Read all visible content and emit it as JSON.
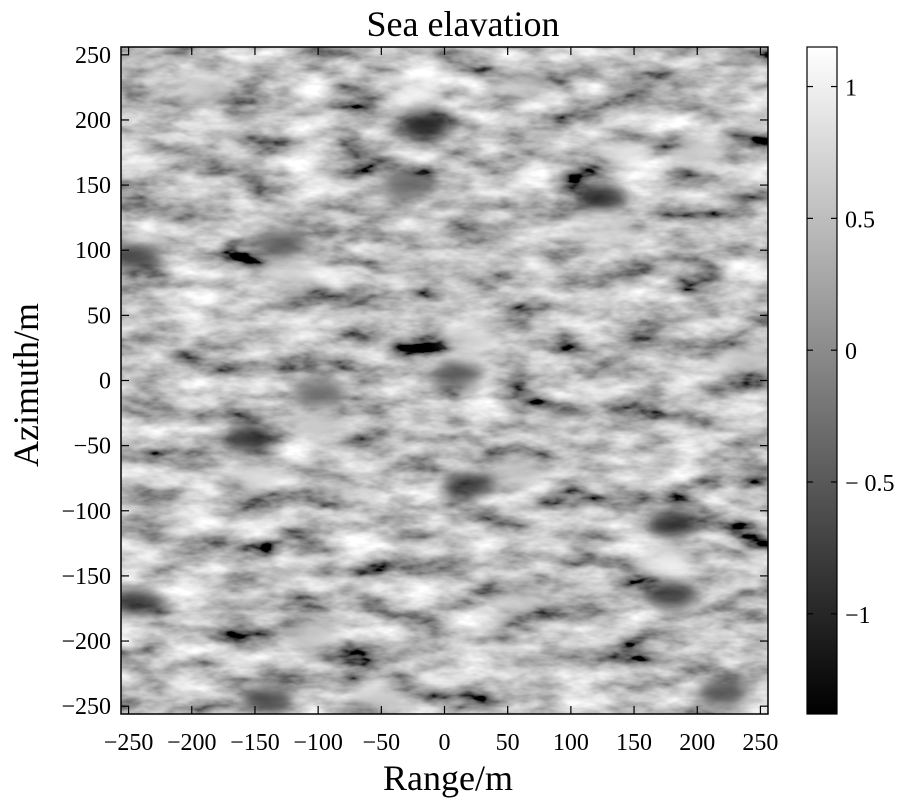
{
  "chart_data": {
    "type": "heatmap",
    "title": "Sea elavation",
    "xlabel": "Range/m",
    "ylabel": "Azimuth/m",
    "xlim": [
      -256,
      256
    ],
    "ylim": [
      -256,
      256
    ],
    "x_ticks": [
      -250,
      -200,
      -150,
      -100,
      -50,
      0,
      50,
      100,
      150,
      200,
      250
    ],
    "x_tick_labels": [
      "−250",
      "−200",
      "−150",
      "−100",
      "−50",
      "0",
      "50",
      "100",
      "150",
      "200",
      "250"
    ],
    "y_ticks": [
      250,
      200,
      150,
      100,
      50,
      0,
      -50,
      -100,
      -150,
      -200,
      -250
    ],
    "y_tick_labels": [
      "250",
      "200",
      "150",
      "100",
      "50",
      "0",
      "−50",
      "−100",
      "−150",
      "−200",
      "−250"
    ],
    "colorbar": {
      "range": [
        -1.38,
        1.15
      ],
      "ticks": [
        1,
        0.5,
        0,
        -0.5,
        -1
      ],
      "tick_labels": [
        "1",
        "0.5",
        "0",
        "− 0.5",
        "−1"
      ],
      "colormap": "gray",
      "low_color": "#000000",
      "high_color": "#ffffff"
    },
    "grid": false,
    "surface_features": [
      {
        "x": -20,
        "y": 220,
        "z": 1.1
      },
      {
        "x": -15,
        "y": 196,
        "z": -1.3
      },
      {
        "x": 125,
        "y": 140,
        "z": -1.1
      },
      {
        "x": 130,
        "y": 115,
        "z": 0.9
      },
      {
        "x": 140,
        "y": 175,
        "z": 0.8
      },
      {
        "x": -190,
        "y": 225,
        "z": 0.6
      },
      {
        "x": 60,
        "y": 225,
        "z": 0.7
      },
      {
        "x": 200,
        "y": 175,
        "z": 0.6
      },
      {
        "x": -245,
        "y": 95,
        "z": -0.9
      },
      {
        "x": -120,
        "y": 80,
        "z": 0.7
      },
      {
        "x": -130,
        "y": 105,
        "z": -0.6
      },
      {
        "x": 20,
        "y": 30,
        "z": 0.7
      },
      {
        "x": 10,
        "y": 5,
        "z": -0.7
      },
      {
        "x": -100,
        "y": -10,
        "z": -0.5
      },
      {
        "x": -155,
        "y": -45,
        "z": -1.0
      },
      {
        "x": -150,
        "y": -75,
        "z": 0.8
      },
      {
        "x": -100,
        "y": -35,
        "z": 0.6
      },
      {
        "x": 60,
        "y": -70,
        "z": 0.6
      },
      {
        "x": 20,
        "y": -80,
        "z": -0.8
      },
      {
        "x": 180,
        "y": -110,
        "z": -1.0
      },
      {
        "x": 175,
        "y": -140,
        "z": 1.0
      },
      {
        "x": 180,
        "y": -165,
        "z": -0.9
      },
      {
        "x": -245,
        "y": -170,
        "z": -0.8
      },
      {
        "x": -105,
        "y": -195,
        "z": 0.5
      },
      {
        "x": 60,
        "y": -170,
        "z": 0.6
      },
      {
        "x": -140,
        "y": -245,
        "z": -0.8
      },
      {
        "x": -50,
        "y": -245,
        "z": 0.6
      },
      {
        "x": 240,
        "y": 15,
        "z": 0.5
      },
      {
        "x": -30,
        "y": 150,
        "z": -0.5
      },
      {
        "x": 220,
        "y": -240,
        "z": -0.7
      }
    ]
  }
}
